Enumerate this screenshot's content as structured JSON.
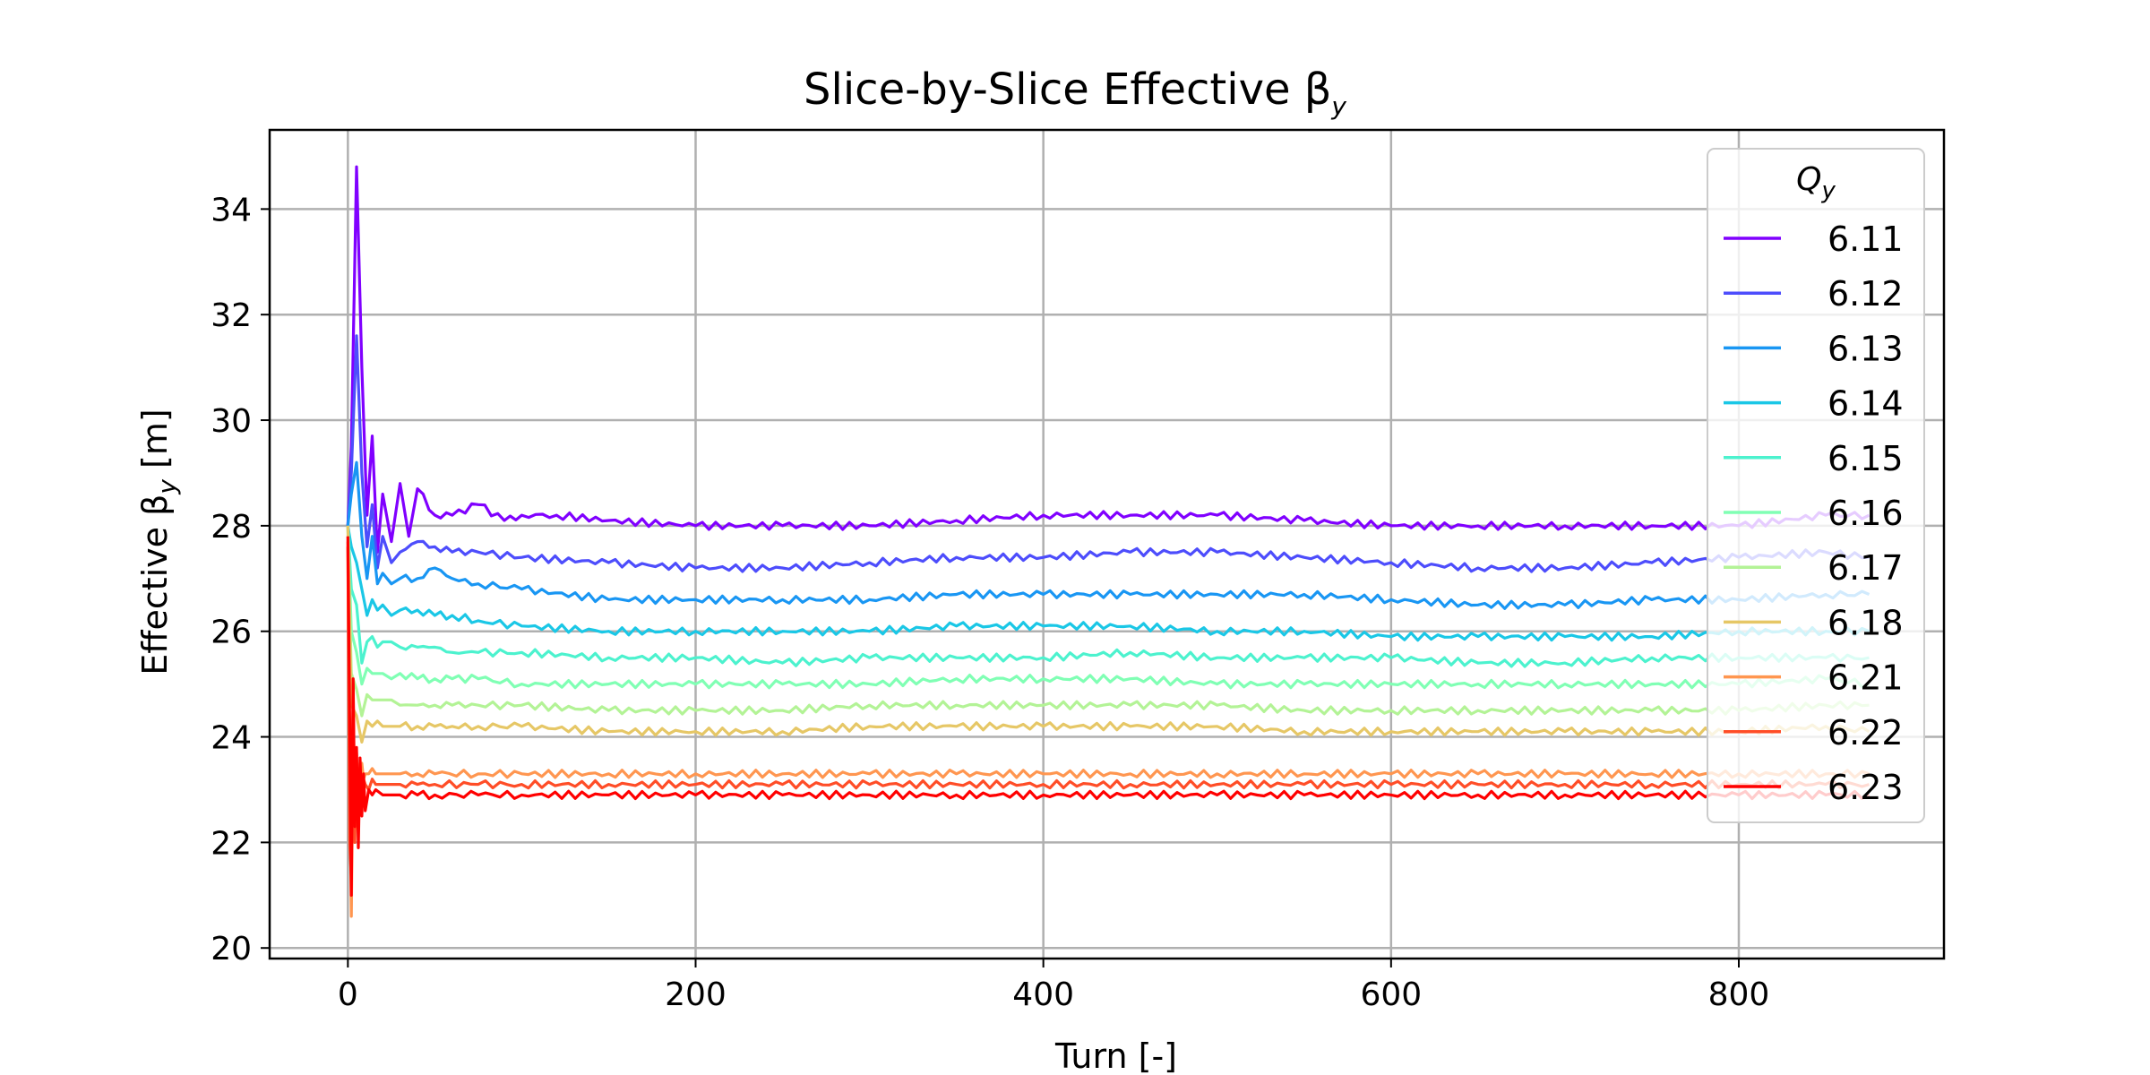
{
  "chart_data": {
    "type": "line",
    "title": "Slice-by-Slice Effective β",
    "title_subscript": "y",
    "xlabel": "Turn [-]",
    "ylabel": "Effective β",
    "ylabel_subscript": "y",
    "ylabel_unit": "[m]",
    "xlim": [
      -45,
      918
    ],
    "ylim": [
      19.8,
      35.5
    ],
    "xticks": [
      0,
      200,
      400,
      600,
      800
    ],
    "yticks": [
      20,
      22,
      24,
      26,
      28,
      30,
      32,
      34
    ],
    "grid": true,
    "legend": {
      "title": "Q",
      "title_subscript": "y",
      "placement": "top-right"
    },
    "series": [
      {
        "name": "6.11",
        "color": "#8000ff",
        "x": [
          0,
          2,
          5,
          8,
          11,
          14,
          17,
          20,
          25,
          30,
          35,
          40,
          50,
          60,
          75,
          90,
          100,
          120,
          150,
          200,
          250,
          300,
          350,
          400,
          450,
          500,
          550,
          600,
          650,
          700,
          750,
          800,
          850,
          875
        ],
        "values": [
          28.0,
          29.5,
          34.8,
          31.0,
          28.2,
          29.7,
          27.5,
          28.6,
          27.7,
          28.8,
          27.8,
          28.7,
          28.2,
          28.2,
          28.4,
          28.1,
          28.2,
          28.2,
          28.1,
          28.0,
          28.0,
          28.0,
          28.1,
          28.2,
          28.2,
          28.2,
          28.1,
          28.0,
          28.0,
          28.0,
          28.0,
          28.0,
          28.2,
          28.2
        ]
      },
      {
        "name": "6.12",
        "color": "#4d4dfc",
        "x": [
          0,
          2,
          5,
          8,
          11,
          14,
          17,
          20,
          25,
          30,
          40,
          50,
          60,
          75,
          100,
          150,
          200,
          250,
          300,
          350,
          400,
          450,
          500,
          550,
          600,
          650,
          700,
          750,
          800,
          850,
          875
        ],
        "values": [
          28.0,
          29.0,
          31.6,
          29.0,
          27.6,
          28.4,
          27.2,
          27.8,
          27.3,
          27.5,
          27.7,
          27.6,
          27.5,
          27.5,
          27.4,
          27.3,
          27.2,
          27.2,
          27.3,
          27.4,
          27.4,
          27.5,
          27.5,
          27.4,
          27.3,
          27.2,
          27.2,
          27.3,
          27.4,
          27.5,
          27.4
        ]
      },
      {
        "name": "6.13",
        "color": "#1996f3",
        "x": [
          0,
          2,
          5,
          8,
          11,
          14,
          17,
          20,
          25,
          30,
          40,
          50,
          60,
          75,
          100,
          150,
          200,
          250,
          300,
          350,
          400,
          450,
          500,
          550,
          600,
          650,
          700,
          750,
          800,
          850,
          875
        ],
        "values": [
          28.0,
          28.6,
          29.2,
          27.8,
          27.0,
          27.8,
          26.9,
          27.1,
          26.9,
          27.0,
          27.0,
          27.2,
          27.0,
          26.9,
          26.8,
          26.6,
          26.6,
          26.6,
          26.6,
          26.7,
          26.7,
          26.7,
          26.7,
          26.7,
          26.6,
          26.5,
          26.5,
          26.6,
          26.6,
          26.7,
          26.7
        ]
      },
      {
        "name": "6.14",
        "color": "#1ac7e6",
        "x": [
          0,
          2,
          5,
          8,
          11,
          14,
          17,
          20,
          25,
          30,
          40,
          50,
          60,
          75,
          100,
          150,
          200,
          250,
          300,
          350,
          400,
          450,
          500,
          550,
          600,
          650,
          700,
          750,
          800,
          850,
          875
        ],
        "values": [
          28.0,
          27.6,
          27.3,
          26.8,
          26.3,
          26.6,
          26.4,
          26.5,
          26.3,
          26.4,
          26.4,
          26.3,
          26.3,
          26.2,
          26.1,
          26.0,
          26.0,
          26.0,
          26.0,
          26.1,
          26.1,
          26.1,
          26.0,
          26.0,
          25.9,
          25.9,
          25.9,
          25.9,
          26.0,
          26.0,
          26.0
        ]
      },
      {
        "name": "6.15",
        "color": "#4cf2ce",
        "x": [
          0,
          2,
          5,
          8,
          11,
          14,
          17,
          20,
          25,
          30,
          40,
          50,
          60,
          75,
          100,
          150,
          200,
          250,
          300,
          350,
          400,
          450,
          500,
          550,
          600,
          650,
          700,
          750,
          800,
          850,
          875
        ],
        "values": [
          28.0,
          26.8,
          26.5,
          25.4,
          25.8,
          25.9,
          25.7,
          25.8,
          25.8,
          25.7,
          25.7,
          25.7,
          25.6,
          25.6,
          25.6,
          25.5,
          25.5,
          25.4,
          25.5,
          25.5,
          25.5,
          25.6,
          25.5,
          25.5,
          25.5,
          25.4,
          25.4,
          25.5,
          25.5,
          25.5,
          25.5
        ]
      },
      {
        "name": "6.16",
        "color": "#80ffb4",
        "x": [
          0,
          2,
          5,
          8,
          11,
          14,
          17,
          20,
          25,
          30,
          40,
          50,
          60,
          75,
          100,
          150,
          200,
          250,
          300,
          350,
          400,
          450,
          500,
          550,
          600,
          650,
          700,
          750,
          800,
          850,
          875
        ],
        "values": [
          28.0,
          26.0,
          25.6,
          25.0,
          25.3,
          25.2,
          25.2,
          25.2,
          25.1,
          25.2,
          25.1,
          25.1,
          25.1,
          25.1,
          25.0,
          25.0,
          25.0,
          25.0,
          25.0,
          25.1,
          25.1,
          25.1,
          25.0,
          25.0,
          25.0,
          25.0,
          25.0,
          25.0,
          25.0,
          25.1,
          25.0
        ]
      },
      {
        "name": "6.17",
        "color": "#b3f396",
        "x": [
          0,
          2,
          5,
          8,
          11,
          14,
          17,
          20,
          25,
          30,
          40,
          50,
          60,
          75,
          100,
          150,
          200,
          250,
          300,
          350,
          400,
          450,
          500,
          550,
          600,
          650,
          700,
          750,
          800,
          850,
          875
        ],
        "values": [
          28.0,
          25.2,
          24.9,
          24.4,
          24.8,
          24.7,
          24.7,
          24.7,
          24.7,
          24.6,
          24.6,
          24.6,
          24.6,
          24.6,
          24.6,
          24.5,
          24.5,
          24.5,
          24.6,
          24.6,
          24.6,
          24.6,
          24.6,
          24.5,
          24.5,
          24.5,
          24.5,
          24.5,
          24.5,
          24.6,
          24.6
        ]
      },
      {
        "name": "6.18",
        "color": "#e6c766",
        "x": [
          0,
          2,
          5,
          8,
          11,
          14,
          17,
          20,
          25,
          30,
          40,
          50,
          60,
          75,
          100,
          150,
          200,
          250,
          300,
          350,
          400,
          450,
          500,
          550,
          600,
          650,
          700,
          750,
          800,
          850,
          875
        ],
        "values": [
          28.0,
          24.6,
          24.4,
          23.9,
          24.3,
          24.2,
          24.3,
          24.2,
          24.2,
          24.2,
          24.2,
          24.2,
          24.2,
          24.2,
          24.2,
          24.1,
          24.1,
          24.1,
          24.2,
          24.2,
          24.2,
          24.2,
          24.2,
          24.1,
          24.1,
          24.1,
          24.1,
          24.1,
          24.1,
          24.2,
          24.1
        ]
      },
      {
        "name": "6.21",
        "color": "#ff9650",
        "x": [
          0,
          1,
          2,
          3,
          4,
          5,
          6,
          7,
          8,
          9,
          10,
          12,
          14,
          16,
          20,
          25,
          30,
          40,
          50,
          75,
          100,
          150,
          200,
          250,
          300,
          350,
          400,
          450,
          500,
          550,
          600,
          650,
          700,
          750,
          800,
          850,
          875
        ],
        "values": [
          27.7,
          23.0,
          20.6,
          24.0,
          23.3,
          22.4,
          23.4,
          23.1,
          23.5,
          23.2,
          23.3,
          23.3,
          23.4,
          23.3,
          23.3,
          23.3,
          23.3,
          23.3,
          23.3,
          23.3,
          23.3,
          23.3,
          23.3,
          23.3,
          23.3,
          23.3,
          23.3,
          23.3,
          23.3,
          23.3,
          23.3,
          23.3,
          23.3,
          23.3,
          23.3,
          23.3,
          23.3
        ]
      },
      {
        "name": "6.22",
        "color": "#ff4d27",
        "x": [
          0,
          1,
          2,
          3,
          4,
          5,
          6,
          7,
          8,
          9,
          10,
          12,
          14,
          16,
          20,
          25,
          30,
          40,
          50,
          75,
          100,
          150,
          200,
          250,
          300,
          350,
          400,
          450,
          500,
          550,
          600,
          650,
          700,
          750,
          800,
          850,
          875
        ],
        "values": [
          27.6,
          22.0,
          21.3,
          25.0,
          22.0,
          23.7,
          22.5,
          23.5,
          22.8,
          23.2,
          23.1,
          23.0,
          23.2,
          23.1,
          23.1,
          23.1,
          23.1,
          23.1,
          23.1,
          23.1,
          23.1,
          23.1,
          23.1,
          23.1,
          23.1,
          23.1,
          23.1,
          23.1,
          23.1,
          23.1,
          23.1,
          23.1,
          23.1,
          23.1,
          23.1,
          23.1,
          23.1
        ]
      },
      {
        "name": "6.23",
        "color": "#ff0000",
        "x": [
          0,
          1,
          2,
          3,
          4,
          5,
          6,
          7,
          8,
          9,
          10,
          12,
          14,
          16,
          20,
          25,
          30,
          40,
          50,
          75,
          100,
          150,
          200,
          250,
          300,
          350,
          400,
          450,
          500,
          550,
          600,
          650,
          700,
          750,
          800,
          850,
          875
        ],
        "values": [
          27.8,
          24.5,
          21.0,
          25.1,
          22.3,
          23.8,
          21.9,
          23.6,
          22.5,
          23.3,
          22.6,
          23.0,
          22.9,
          23.0,
          22.9,
          22.9,
          22.9,
          22.9,
          22.9,
          22.9,
          22.9,
          22.9,
          22.9,
          22.9,
          22.9,
          22.9,
          22.9,
          22.9,
          22.9,
          22.9,
          22.9,
          22.9,
          22.9,
          22.9,
          22.9,
          22.9,
          22.9
        ]
      }
    ]
  }
}
